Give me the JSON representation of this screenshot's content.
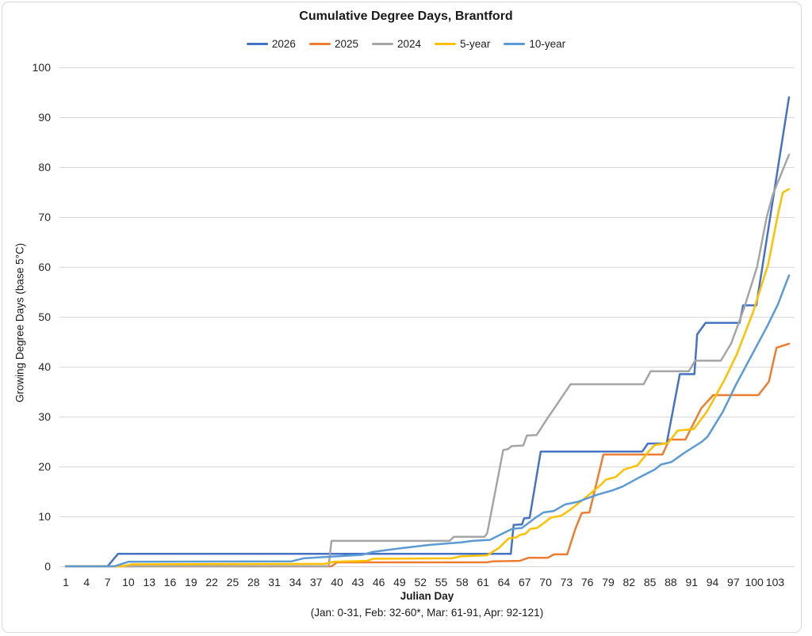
{
  "chart_data": {
    "type": "line",
    "title": "Cumulative Degree Days, Brantford",
    "xlabel": "Julian Day",
    "xlabel_note": "(Jan: 0-31, Feb: 32-60*, Mar: 61-91, Apr: 92-121)",
    "ylabel": "Growing Degree Days (base 5°C)",
    "xlim": [
      1,
      105
    ],
    "ylim": [
      0,
      100
    ],
    "x_ticks": {
      "start": 1,
      "end": 103,
      "step": 3
    },
    "y_ticks": {
      "start": 0,
      "end": 100,
      "step": 10
    },
    "grid": "horizontal-only",
    "gridline_color": "#d9d9d9",
    "text_color": "#262626",
    "legend_position": "top-center",
    "series": [
      {
        "name": "2026",
        "color": "#4472C4",
        "points": [
          [
            1,
            0
          ],
          [
            7,
            0
          ],
          [
            8.5,
            2.5
          ],
          [
            65,
            2.5
          ],
          [
            65.4,
            8.3
          ],
          [
            66.6,
            8.4
          ],
          [
            66.9,
            9.6
          ],
          [
            67.7,
            9.7
          ],
          [
            69.3,
            23
          ],
          [
            83.9,
            23
          ],
          [
            84.7,
            24.6
          ],
          [
            87.4,
            24.6
          ],
          [
            89.3,
            38.5
          ],
          [
            91.4,
            38.5
          ],
          [
            91.8,
            46.5
          ],
          [
            93,
            48.8
          ],
          [
            97.9,
            48.8
          ],
          [
            98.4,
            52.3
          ],
          [
            100.3,
            52.3
          ],
          [
            105,
            94
          ]
        ]
      },
      {
        "name": "2025",
        "color": "#ED7D31",
        "points": [
          [
            1,
            0
          ],
          [
            39.2,
            0
          ],
          [
            40,
            0.8
          ],
          [
            61.5,
            0.8
          ],
          [
            62.5,
            1
          ],
          [
            66.3,
            1.1
          ],
          [
            67.5,
            1.7
          ],
          [
            70.3,
            1.7
          ],
          [
            71.2,
            2.4
          ],
          [
            73.1,
            2.4
          ],
          [
            74.3,
            7.6
          ],
          [
            75.2,
            10.7
          ],
          [
            76.3,
            10.8
          ],
          [
            78.3,
            22.4
          ],
          [
            86.8,
            22.4
          ],
          [
            87.8,
            25.4
          ],
          [
            90.1,
            25.4
          ],
          [
            92.4,
            31.7
          ],
          [
            94.1,
            34.3
          ],
          [
            100.6,
            34.3
          ],
          [
            102.1,
            37
          ],
          [
            103.2,
            43.8
          ],
          [
            105,
            44.6
          ]
        ]
      },
      {
        "name": "2024",
        "color": "#A5A5A5",
        "points": [
          [
            1,
            0
          ],
          [
            38.8,
            0
          ],
          [
            39.2,
            5.1
          ],
          [
            56.2,
            5.1
          ],
          [
            56.8,
            5.9
          ],
          [
            61.2,
            5.9
          ],
          [
            61.6,
            6.6
          ],
          [
            63.9,
            23.3
          ],
          [
            64.6,
            23.5
          ],
          [
            65.1,
            24.1
          ],
          [
            66.8,
            24.2
          ],
          [
            67.3,
            26.2
          ],
          [
            68.7,
            26.3
          ],
          [
            70.2,
            29.5
          ],
          [
            73.6,
            36.5
          ],
          [
            84.1,
            36.5
          ],
          [
            85.1,
            39.1
          ],
          [
            90.6,
            39.1
          ],
          [
            91.5,
            41.2
          ],
          [
            95.2,
            41.2
          ],
          [
            96.7,
            44.7
          ],
          [
            98.6,
            52
          ],
          [
            100.4,
            60
          ],
          [
            101.8,
            70
          ],
          [
            102.7,
            74.6
          ],
          [
            105,
            82.5
          ]
        ]
      },
      {
        "name": "5-year",
        "color": "#FFC000",
        "points": [
          [
            1,
            0
          ],
          [
            9,
            0
          ],
          [
            10.5,
            0.4
          ],
          [
            38.3,
            0.5
          ],
          [
            39.5,
            0.9
          ],
          [
            44.3,
            1.1
          ],
          [
            45.2,
            1.5
          ],
          [
            56.5,
            1.6
          ],
          [
            57.8,
            2
          ],
          [
            61.6,
            2.2
          ],
          [
            63.3,
            3.7
          ],
          [
            64.7,
            5.6
          ],
          [
            65.8,
            5.8
          ],
          [
            66.3,
            6.3
          ],
          [
            67.1,
            6.5
          ],
          [
            67.8,
            7.5
          ],
          [
            68.8,
            7.7
          ],
          [
            69.4,
            8.3
          ],
          [
            70.8,
            9.8
          ],
          [
            72.2,
            10.1
          ],
          [
            73.6,
            11.4
          ],
          [
            75.6,
            13.6
          ],
          [
            77.9,
            16.3
          ],
          [
            78.7,
            17.4
          ],
          [
            80.1,
            17.9
          ],
          [
            81.3,
            19.4
          ],
          [
            83.2,
            20.2
          ],
          [
            85,
            23.3
          ],
          [
            85.7,
            24.3
          ],
          [
            87.6,
            24.7
          ],
          [
            89,
            27.2
          ],
          [
            91.3,
            27.5
          ],
          [
            93.2,
            31
          ],
          [
            95.7,
            37.3
          ],
          [
            97.5,
            42.5
          ],
          [
            99.8,
            50.8
          ],
          [
            102,
            60.5
          ],
          [
            103.4,
            70.5
          ],
          [
            104.1,
            74.9
          ],
          [
            105,
            75.6
          ]
        ]
      },
      {
        "name": "10-year",
        "color": "#5B9BD5",
        "points": [
          [
            1,
            0
          ],
          [
            8,
            0
          ],
          [
            10,
            0.9
          ],
          [
            33.5,
            1
          ],
          [
            35.2,
            1.6
          ],
          [
            43.6,
            2.3
          ],
          [
            45.2,
            2.9
          ],
          [
            49.6,
            3.7
          ],
          [
            53.4,
            4.3
          ],
          [
            57.9,
            4.8
          ],
          [
            59.5,
            5.1
          ],
          [
            62,
            5.3
          ],
          [
            64,
            6.7
          ],
          [
            65.2,
            7.5
          ],
          [
            66.6,
            7.7
          ],
          [
            68.6,
            9.8
          ],
          [
            69.7,
            10.8
          ],
          [
            71.2,
            11.1
          ],
          [
            72.8,
            12.4
          ],
          [
            74.6,
            12.9
          ],
          [
            77.3,
            14.3
          ],
          [
            79.6,
            15.2
          ],
          [
            81.1,
            16
          ],
          [
            83.6,
            17.9
          ],
          [
            85.7,
            19.4
          ],
          [
            86.6,
            20.4
          ],
          [
            88.1,
            20.9
          ],
          [
            89.9,
            22.7
          ],
          [
            92.5,
            25
          ],
          [
            93.3,
            26
          ],
          [
            95.5,
            31
          ],
          [
            97.3,
            36.2
          ],
          [
            99.9,
            43
          ],
          [
            101.9,
            48.2
          ],
          [
            103.4,
            52.5
          ],
          [
            105,
            58.3
          ]
        ]
      }
    ]
  }
}
